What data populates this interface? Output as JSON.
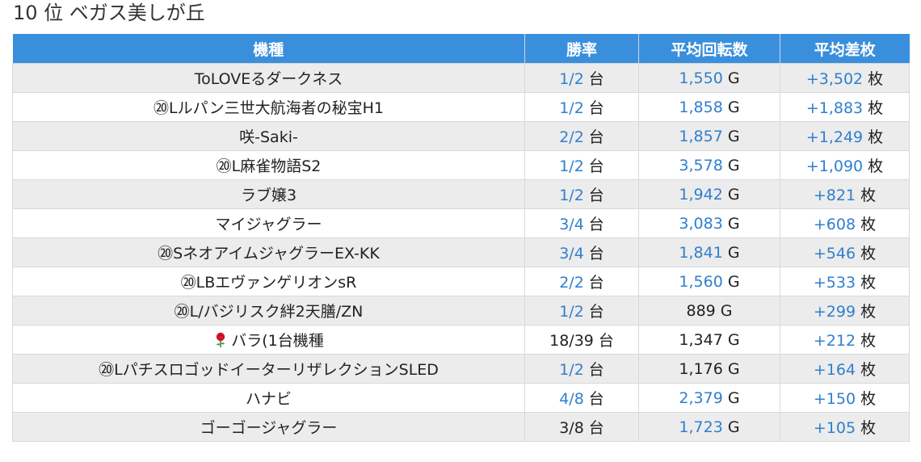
{
  "page": {
    "title": "10 位 ベガス美しが丘"
  },
  "table": {
    "headers": [
      "機種",
      "勝率",
      "平均回転数",
      "平均差枚"
    ],
    "units": {
      "win": "台",
      "spins": "G",
      "diff": "枚"
    },
    "rows": [
      {
        "name": "ToLOVEるダークネス",
        "win": "1/2",
        "spins": "1,550",
        "diff": "+3,502",
        "win_hl": true,
        "spins_hl": true
      },
      {
        "name": "⑳Lルパン三世大航海者の秘宝H1",
        "win": "1/2",
        "spins": "1,858",
        "diff": "+1,883",
        "win_hl": true,
        "spins_hl": true
      },
      {
        "name": "咲-Saki-",
        "win": "2/2",
        "spins": "1,857",
        "diff": "+1,249",
        "win_hl": true,
        "spins_hl": true
      },
      {
        "name": "⑳L麻雀物語S2",
        "win": "1/2",
        "spins": "3,578",
        "diff": "+1,090",
        "win_hl": true,
        "spins_hl": true
      },
      {
        "name": "ラブ嬢3",
        "win": "1/2",
        "spins": "1,942",
        "diff": "+821",
        "win_hl": true,
        "spins_hl": true
      },
      {
        "name": "マイジャグラー",
        "win": "3/4",
        "spins": "3,083",
        "diff": "+608",
        "win_hl": true,
        "spins_hl": true
      },
      {
        "name": "⑳SネオアイムジャグラーEX-KK",
        "win": "3/4",
        "spins": "1,841",
        "diff": "+546",
        "win_hl": true,
        "spins_hl": true
      },
      {
        "name": "⑳LBエヴァンゲリオンsR",
        "win": "2/2",
        "spins": "1,560",
        "diff": "+533",
        "win_hl": true,
        "spins_hl": true
      },
      {
        "name": "⑳L/バジリスク絆2天膳/ZN",
        "win": "1/2",
        "spins": "889",
        "diff": "+299",
        "win_hl": true,
        "spins_hl": false
      },
      {
        "name": "バラ(1台機種",
        "win": "18/39",
        "spins": "1,347",
        "diff": "+212",
        "win_hl": false,
        "spins_hl": false,
        "icon": "rose-icon"
      },
      {
        "name": "⑳LパチスロゴッドイーターリザレクションSLED",
        "win": "1/2",
        "spins": "1,176",
        "diff": "+164",
        "win_hl": true,
        "spins_hl": false
      },
      {
        "name": "ハナビ",
        "win": "4/8",
        "spins": "2,379",
        "diff": "+150",
        "win_hl": true,
        "spins_hl": true
      },
      {
        "name": "ゴーゴージャグラー",
        "win": "3/8",
        "spins": "1,723",
        "diff": "+105",
        "win_hl": false,
        "spins_hl": true
      }
    ]
  },
  "colors": {
    "header_bg": "#3a8fdc",
    "link_blue": "#2f7fcf",
    "row_stripe": "#ececec"
  }
}
